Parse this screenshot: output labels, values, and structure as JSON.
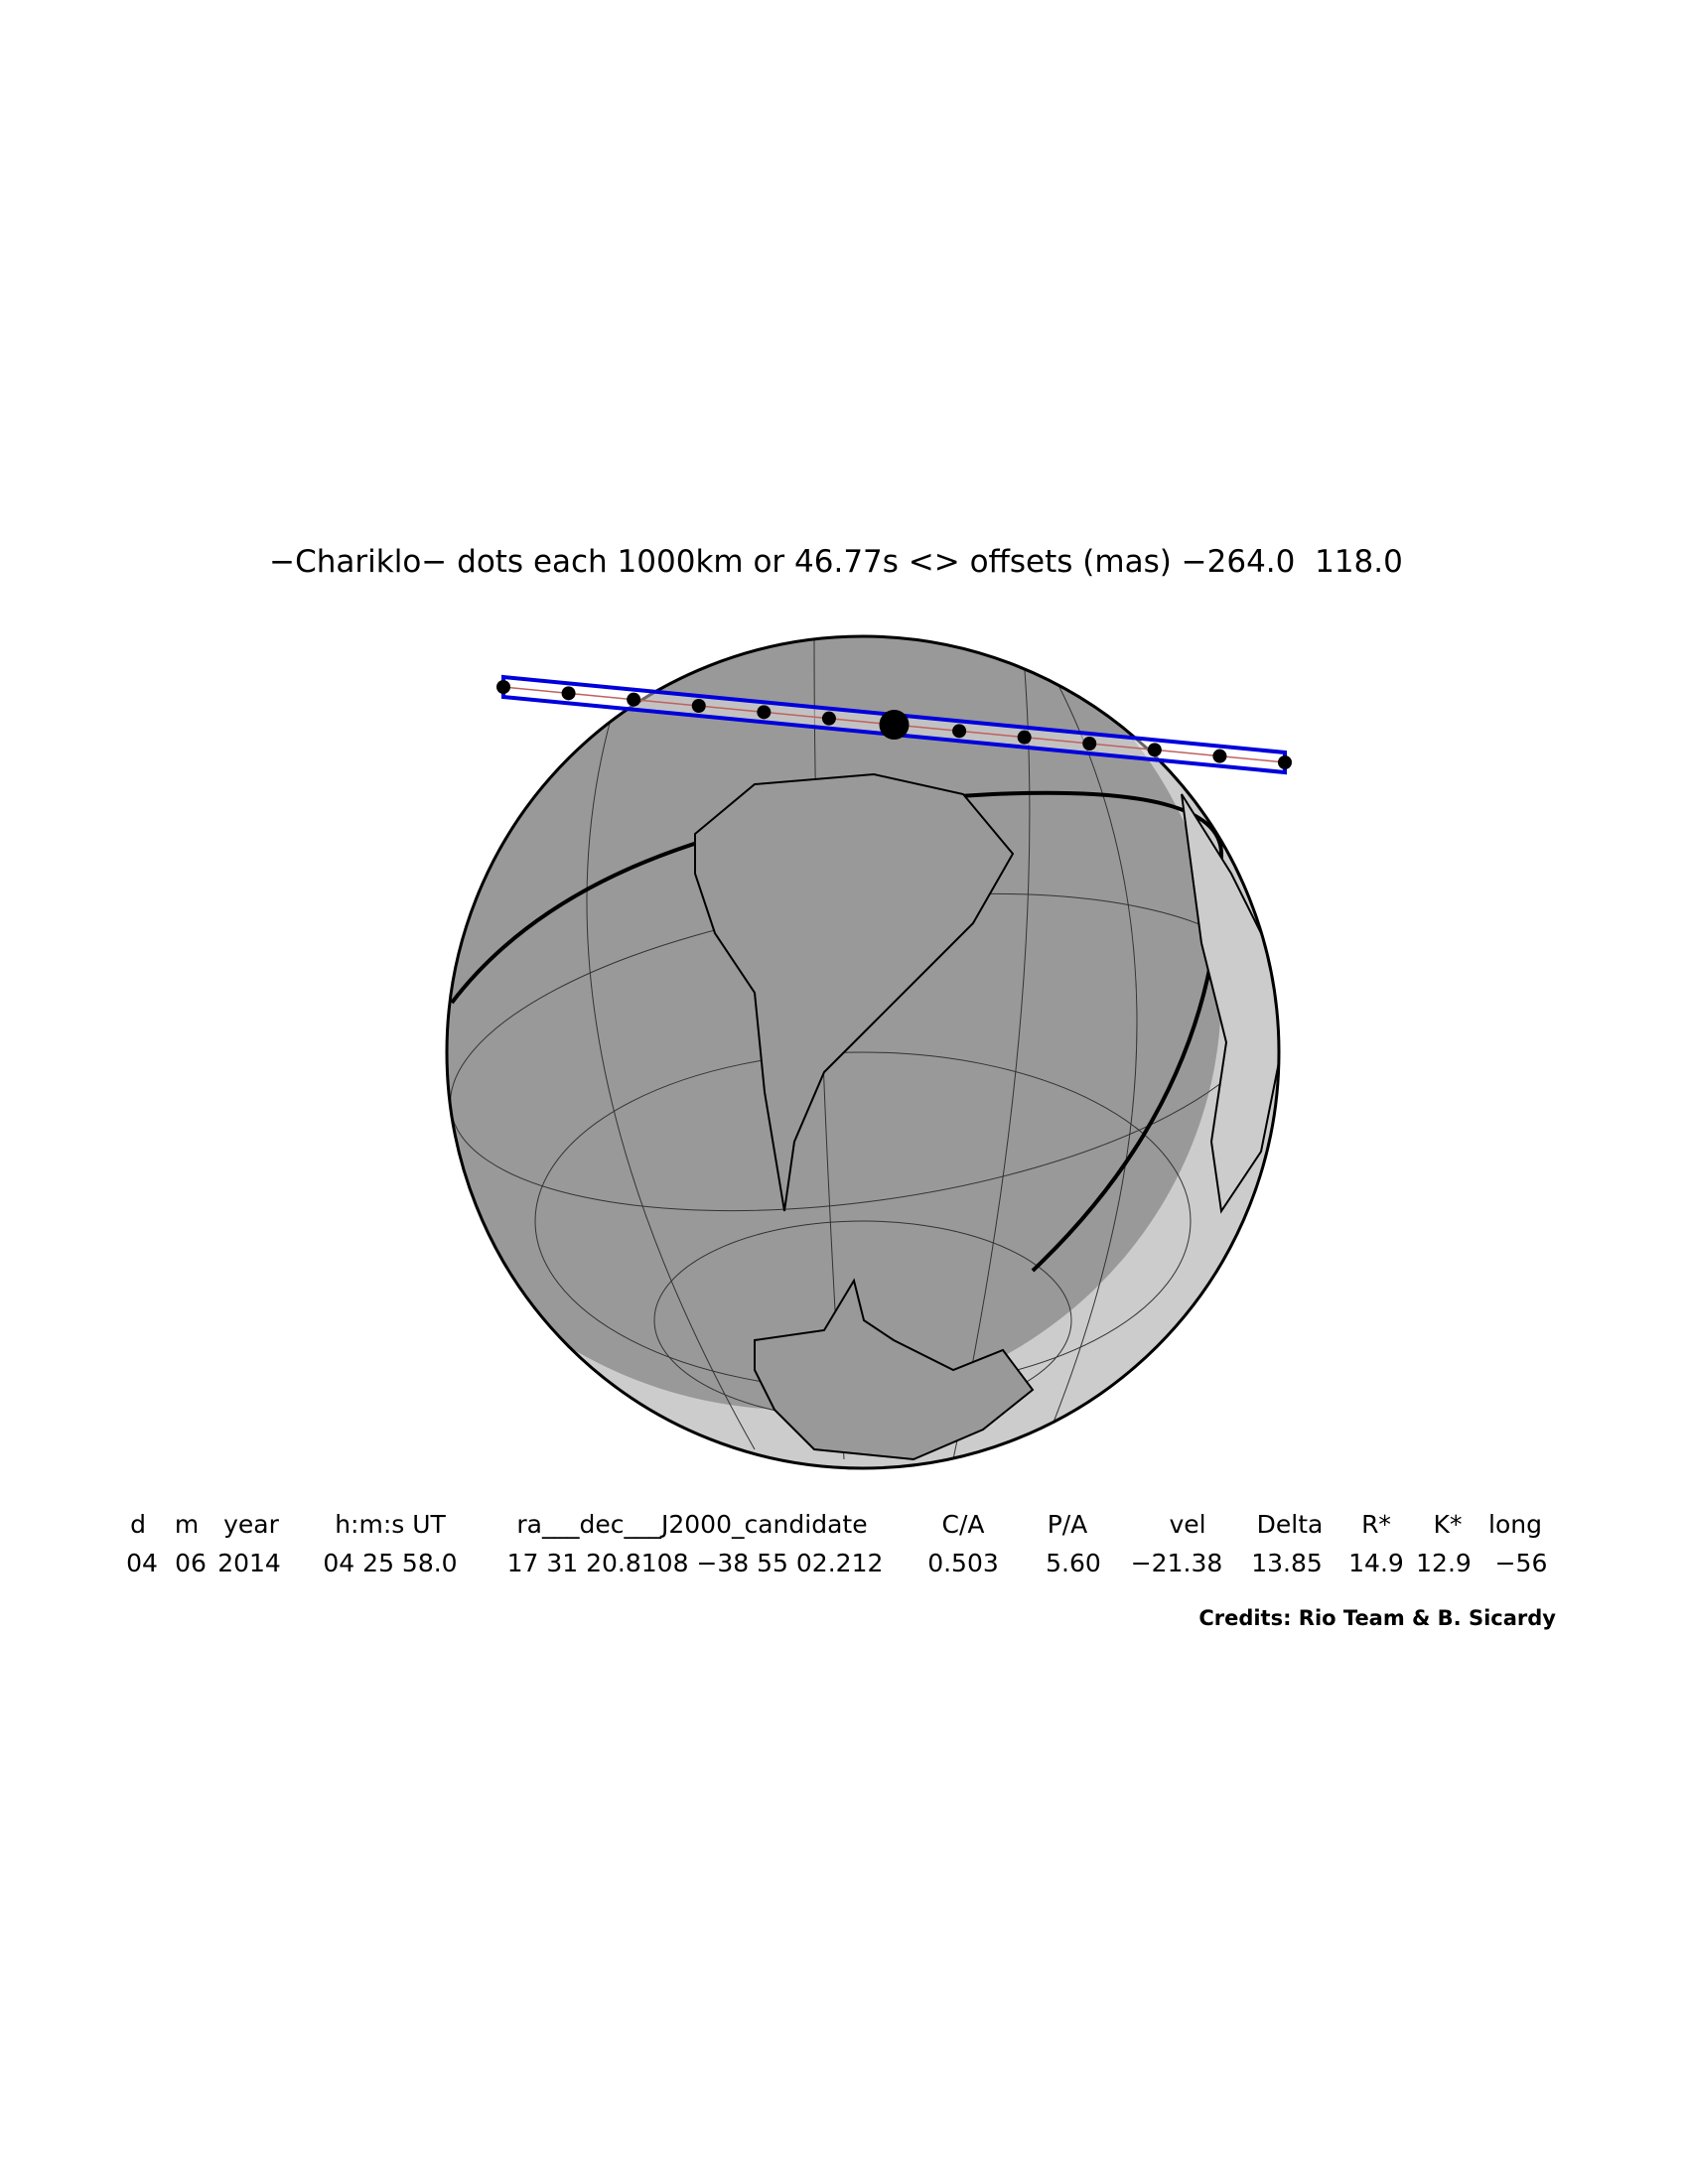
{
  "title": "−Chariklo− dots each 1000km or 46.77s <> offsets (mas) −264.0  118.0",
  "table": {
    "headers": [
      "d",
      "m",
      "year",
      "h:m:s UT",
      "ra___dec___J2000_candidate",
      "C/A",
      "P/A",
      "vel",
      "Delta",
      "R*",
      "K*",
      "long"
    ],
    "values": [
      "04",
      "06",
      "2014",
      "04 25 58.0",
      "17 31 20.8108 −38 55 02.212",
      "0.503",
      "5.60",
      "−21.38",
      "13.85",
      "14.9",
      "12.9",
      "−56"
    ]
  },
  "credits": "Credits: Rio Team & B. Sicardy"
}
